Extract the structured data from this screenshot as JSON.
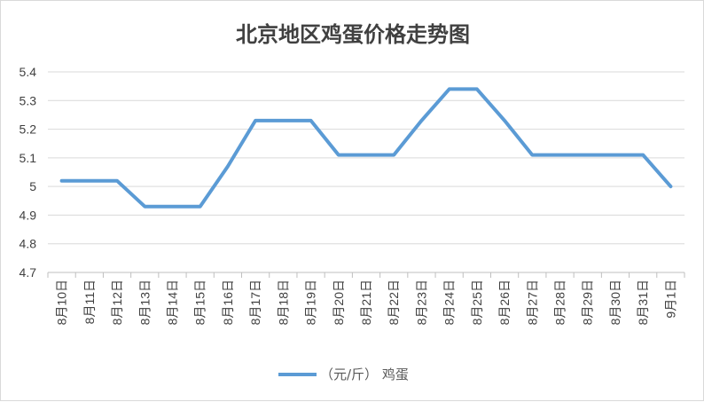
{
  "chart_data": {
    "type": "line",
    "title": "北京地区鸡蛋价格走势图",
    "xlabel": "",
    "ylabel": "",
    "categories": [
      "8月10日",
      "8月11日",
      "8月12日",
      "8月13日",
      "8月14日",
      "8月15日",
      "8月16日",
      "8月17日",
      "8月18日",
      "8月19日",
      "8月20日",
      "8月21日",
      "8月22日",
      "8月23日",
      "8月24日",
      "8月25日",
      "8月26日",
      "8月27日",
      "8月28日",
      "8月29日",
      "8月30日",
      "8月31日",
      "9月1日"
    ],
    "series": [
      {
        "name": "（元/斤） 鸡蛋",
        "values": [
          5.02,
          5.02,
          5.02,
          4.93,
          4.93,
          4.93,
          5.07,
          5.23,
          5.23,
          5.23,
          5.11,
          5.11,
          5.11,
          5.23,
          5.34,
          5.34,
          5.23,
          5.11,
          5.11,
          5.11,
          5.11,
          5.11,
          5.0
        ]
      }
    ],
    "ylim": [
      4.7,
      5.4
    ],
    "yticks": [
      "4.7",
      "4.8",
      "4.9",
      "5",
      "5.1",
      "5.2",
      "5.3",
      "5.4"
    ],
    "grid": true,
    "legend_position": "bottom",
    "colors": {
      "series": "#5b9bd5",
      "grid": "#d9d9d9",
      "axis": "#bfbfbf",
      "text": "#404040"
    }
  }
}
